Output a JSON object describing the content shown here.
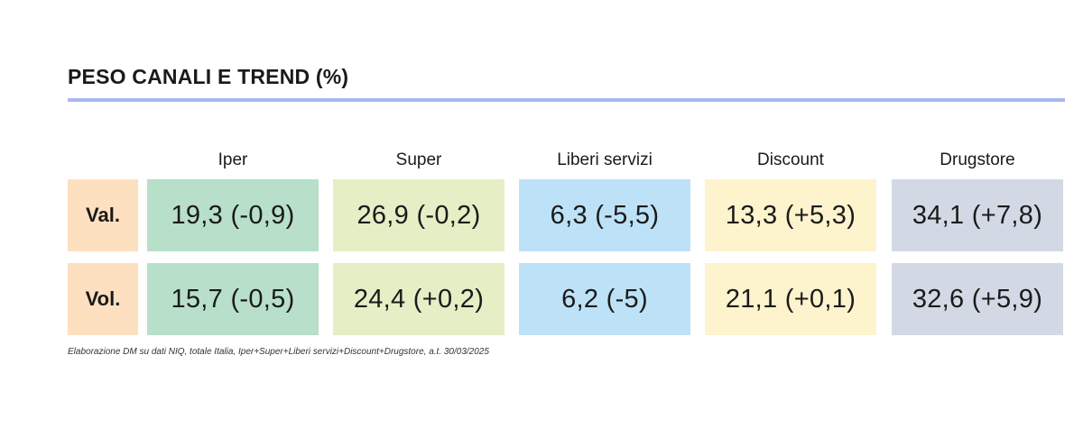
{
  "chart_data": {
    "type": "table",
    "title": "PESO CANALI E TREND (%)",
    "columns": [
      "Iper",
      "Super",
      "Liberi servizi",
      "Discount",
      "Drugstore"
    ],
    "rows": [
      {
        "label": "Val.",
        "cells": [
          "19,3 (-0,9)",
          "26,9 (-0,2)",
          "6,3 (-5,5)",
          "13,3 (+5,3)",
          "34,1 (+7,8)"
        ],
        "share": [
          19.3,
          26.9,
          6.3,
          13.3,
          34.1
        ],
        "trend": [
          -0.9,
          -0.2,
          -5.5,
          5.3,
          7.8
        ]
      },
      {
        "label": "Vol.",
        "cells": [
          "15,7 (-0,5)",
          "24,4 (+0,2)",
          "6,2 (-5)",
          "21,1 (+0,1)",
          "32,6 (+5,9)"
        ],
        "share": [
          15.7,
          24.4,
          6.2,
          21.1,
          32.6
        ],
        "trend": [
          -0.5,
          0.2,
          -5,
          0.1,
          5.9
        ]
      }
    ],
    "colors": {
      "label_bg": "#fde0c0",
      "columns": [
        "#b8dfca",
        "#e5eec5",
        "#bde2f7",
        "#fdf3cd",
        "#d3d9e4"
      ],
      "accent_rule": "#a9b8ef"
    }
  },
  "footnote": "Elaborazione DM su dati NIQ, totale Italia, Iper+Super+Liberi servizi+Discount+Drugstore, a.t. 30/03/2025"
}
